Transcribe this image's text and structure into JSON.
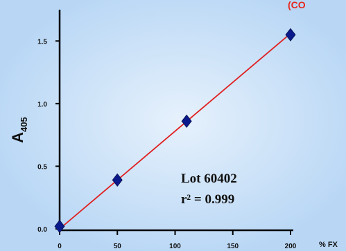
{
  "chart_data": {
    "type": "scatter",
    "title": "",
    "title_fragment": "(CO",
    "xlabel": "% FX",
    "ylabel": "A",
    "ylabel_subscript": "405",
    "xlim": [
      0,
      200
    ],
    "ylim": [
      0,
      1.75
    ],
    "x_ticks": [
      "0",
      "50",
      "100",
      "150",
      "200"
    ],
    "y_ticks": [
      {
        "label": "0.0",
        "value": 0.0
      },
      {
        "label": "0.5",
        "value": 0.5
      },
      {
        "label": "1.0",
        "value": 1.0
      },
      {
        "label": "1.5",
        "value": 1.5
      }
    ],
    "series": [
      {
        "x": [
          0,
          50,
          110,
          200
        ],
        "y": [
          0.02,
          0.39,
          0.86,
          1.55
        ],
        "marker": "diamond",
        "color": "#0a1a8c"
      }
    ],
    "fit_line": {
      "x": [
        0,
        200
      ],
      "y": [
        0.0,
        1.56
      ],
      "color": "#e02020"
    },
    "annotations": [
      "Lot 60402",
      "r² = 0.999"
    ],
    "grid": false,
    "background_colors": {
      "outer": "#b9d7f5",
      "glow": "#e6f1fc"
    }
  }
}
